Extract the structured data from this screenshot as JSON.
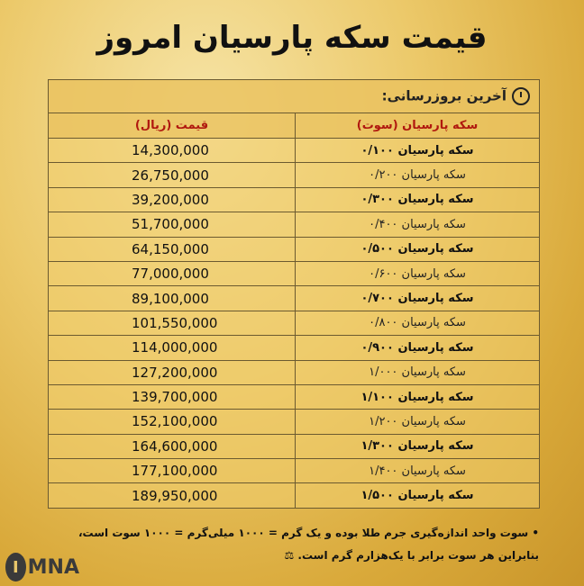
{
  "title": "قیمت سکه پارسیان امروز",
  "last_update_label": "آخرین بروزرسانی:",
  "columns": {
    "name": "سکه پارسیان (سوت)",
    "price": "قیمت (ریال)"
  },
  "rows": [
    {
      "name": "سکه پارسیان ۰/۱۰۰",
      "price": "14,300,000"
    },
    {
      "name": "سکه پارسیان ۰/۲۰۰",
      "price": "26,750,000"
    },
    {
      "name": "سکه پارسیان ۰/۳۰۰",
      "price": "39,200,000"
    },
    {
      "name": "سکه پارسیان ۰/۴۰۰",
      "price": "51,700,000"
    },
    {
      "name": "سکه پارسیان ۰/۵۰۰",
      "price": "64,150,000"
    },
    {
      "name": "سکه پارسیان ۰/۶۰۰",
      "price": "77,000,000"
    },
    {
      "name": "سکه پارسیان ۰/۷۰۰",
      "price": "89,100,000"
    },
    {
      "name": "سکه پارسیان ۰/۸۰۰",
      "price": "101,550,000"
    },
    {
      "name": "سکه پارسیان ۰/۹۰۰",
      "price": "114,000,000"
    },
    {
      "name": "سکه پارسیان ۱/۰۰۰",
      "price": "127,200,000"
    },
    {
      "name": "سکه پارسیان ۱/۱۰۰",
      "price": "139,700,000"
    },
    {
      "name": "سکه پارسیان ۱/۲۰۰",
      "price": "152,100,000"
    },
    {
      "name": "سکه پارسیان ۱/۳۰۰",
      "price": "164,600,000"
    },
    {
      "name": "سکه پارسیان ۱/۴۰۰",
      "price": "177,100,000"
    },
    {
      "name": "سکه پارسیان ۱/۵۰۰",
      "price": "189,950,000"
    }
  ],
  "notes": [
    "• سوت واحد اندازه‌گیری جرم طلا بوده و یک گرم = ۱۰۰۰ میلی‌گرم = ۱۰۰۰ سوت است،",
    "بنابراین هر سوت برابر با یک‌هزارم گرم است. ⚖"
  ],
  "logo": "IMNA",
  "colors": {
    "header_text": "#b0180f",
    "background": "#e0b54a"
  }
}
